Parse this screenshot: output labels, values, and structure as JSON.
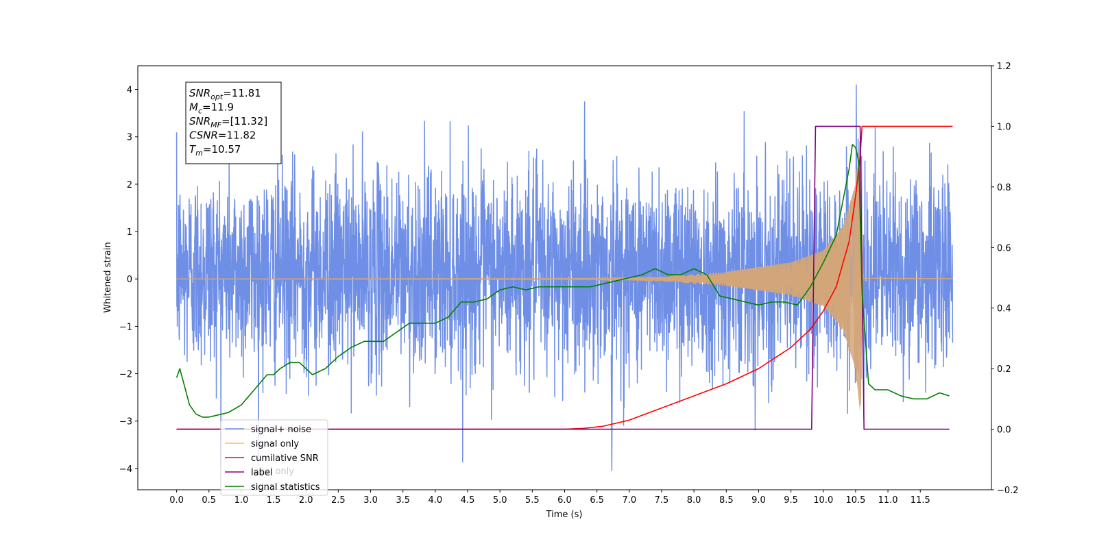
{
  "chart_data": {
    "type": "line",
    "xlabel": "Time (s)",
    "ylabel": "Whitened strain",
    "xlim": [
      -0.6,
      12.6
    ],
    "ylim": [
      -4.45,
      4.5
    ],
    "y2lim": [
      -0.2,
      1.2
    ],
    "x_ticks": [
      0.0,
      0.5,
      1.0,
      1.5,
      2.0,
      2.5,
      3.0,
      3.5,
      4.0,
      4.5,
      5.0,
      5.5,
      6.0,
      6.5,
      7.0,
      7.5,
      8.0,
      8.5,
      9.0,
      9.5,
      10.0,
      10.5,
      11.0,
      11.5
    ],
    "x_tick_labels": [
      "0.0",
      "0.5",
      "1.0",
      "1.5",
      "2.0",
      "2.5",
      "3.0",
      "3.5",
      "4.0",
      "4.5",
      "5.0",
      "5.5",
      "6.0",
      "6.5",
      "7.0",
      "7.5",
      "8.0",
      "8.5",
      "9.0",
      "9.5",
      "10.0",
      "10.5",
      "11.0",
      "11.5"
    ],
    "y_ticks": [
      -4,
      -3,
      -2,
      -1,
      0,
      1,
      2,
      3,
      4
    ],
    "y_tick_labels": [
      "−4",
      "−3",
      "−2",
      "−1",
      "0",
      "1",
      "2",
      "3",
      "4"
    ],
    "y2_ticks": [
      -0.2,
      0.0,
      0.2,
      0.4,
      0.6,
      0.8,
      1.0,
      1.2
    ],
    "y2_tick_labels": [
      "−0.2",
      "0.0",
      "0.2",
      "0.4",
      "0.6",
      "0.8",
      "1.0",
      "1.2"
    ],
    "grid": false,
    "legend_position": "lower-left",
    "legend": [
      {
        "label": "signal+ noise",
        "color": "#6f8fe6"
      },
      {
        "label": "signal only",
        "color": "#ffbb55"
      },
      {
        "label": "cumilative SNR",
        "color": "#ff0000"
      },
      {
        "label": "label",
        "color": "#800080"
      },
      {
        "label": "signal statistics",
        "color": "#008000"
      }
    ],
    "hidden_legend_text": "label only",
    "annotation": [
      {
        "base": "SNR",
        "sub": "opt",
        "value": "=11.81"
      },
      {
        "base": "M",
        "sub": "c",
        "value": "=11.9"
      },
      {
        "base": "SNR",
        "sub": "MF",
        "value": "=[11.32]"
      },
      {
        "base": "CSNR",
        "sub": "",
        "value": "=11.82"
      },
      {
        "base": "T",
        "sub": "m",
        "value": "=10.57"
      }
    ],
    "series": [
      {
        "name": "signal+ noise",
        "axis": "left",
        "color": "#6f8fe6",
        "x_range": [
          0.0,
          12.0
        ],
        "envelope_typical": [
          -1.8,
          2.3
        ],
        "peak_max": 4.1,
        "peak_min": -4.05
      },
      {
        "name": "signal only",
        "axis": "left",
        "color": "#d2a679",
        "x_range": [
          0.0,
          12.0
        ],
        "envelope": [
          [
            0.0,
            0.0
          ],
          [
            6.5,
            0.01
          ],
          [
            7.5,
            0.05
          ],
          [
            8.5,
            0.15
          ],
          [
            9.5,
            0.35
          ],
          [
            10.0,
            0.6
          ],
          [
            10.3,
            1.1
          ],
          [
            10.5,
            2.0
          ],
          [
            10.57,
            3.0
          ],
          [
            10.62,
            0.03
          ],
          [
            12.0,
            0.01
          ]
        ]
      },
      {
        "name": "cumilative SNR",
        "axis": "right",
        "color": "#ff0000",
        "x": [
          0.0,
          6.0,
          6.3,
          6.6,
          7.0,
          7.5,
          8.0,
          8.5,
          9.0,
          9.5,
          9.8,
          10.0,
          10.2,
          10.4,
          10.5,
          10.57,
          10.6,
          12.0
        ],
        "y": [
          0.0,
          0.0,
          0.003,
          0.01,
          0.03,
          0.07,
          0.11,
          0.15,
          0.2,
          0.27,
          0.33,
          0.39,
          0.47,
          0.62,
          0.77,
          0.9,
          1.0,
          1.0
        ]
      },
      {
        "name": "label",
        "axis": "right",
        "color": "#800080",
        "x": [
          0.0,
          9.82,
          9.88,
          10.57,
          10.63,
          11.95
        ],
        "y": [
          0.0,
          0.0,
          1.0,
          1.0,
          0.0,
          0.0
        ]
      },
      {
        "name": "signal statistics",
        "axis": "right",
        "color": "#008000",
        "x": [
          0.0,
          0.05,
          0.1,
          0.2,
          0.3,
          0.4,
          0.5,
          0.6,
          0.8,
          1.0,
          1.2,
          1.4,
          1.5,
          1.6,
          1.75,
          1.9,
          2.0,
          2.1,
          2.3,
          2.5,
          2.7,
          2.9,
          3.0,
          3.2,
          3.4,
          3.6,
          3.8,
          4.0,
          4.2,
          4.4,
          4.6,
          4.8,
          5.0,
          5.2,
          5.4,
          5.6,
          5.8,
          6.0,
          6.2,
          6.4,
          6.6,
          6.8,
          7.0,
          7.2,
          7.4,
          7.6,
          7.8,
          8.0,
          8.2,
          8.4,
          8.6,
          8.8,
          9.0,
          9.2,
          9.4,
          9.6,
          9.8,
          10.0,
          10.2,
          10.4,
          10.45,
          10.5,
          10.55,
          10.6,
          10.7,
          10.8,
          11.0,
          11.2,
          11.4,
          11.6,
          11.8,
          11.95
        ],
        "y": [
          0.17,
          0.2,
          0.16,
          0.08,
          0.05,
          0.04,
          0.04,
          0.045,
          0.055,
          0.08,
          0.13,
          0.18,
          0.18,
          0.2,
          0.22,
          0.22,
          0.2,
          0.18,
          0.2,
          0.24,
          0.27,
          0.29,
          0.29,
          0.29,
          0.32,
          0.35,
          0.35,
          0.35,
          0.37,
          0.42,
          0.42,
          0.43,
          0.46,
          0.47,
          0.46,
          0.47,
          0.47,
          0.47,
          0.47,
          0.47,
          0.48,
          0.49,
          0.5,
          0.51,
          0.53,
          0.51,
          0.51,
          0.53,
          0.51,
          0.44,
          0.43,
          0.42,
          0.41,
          0.42,
          0.42,
          0.41,
          0.47,
          0.55,
          0.64,
          0.86,
          0.94,
          0.93,
          0.88,
          0.45,
          0.15,
          0.13,
          0.13,
          0.11,
          0.1,
          0.1,
          0.12,
          0.11
        ]
      }
    ]
  }
}
